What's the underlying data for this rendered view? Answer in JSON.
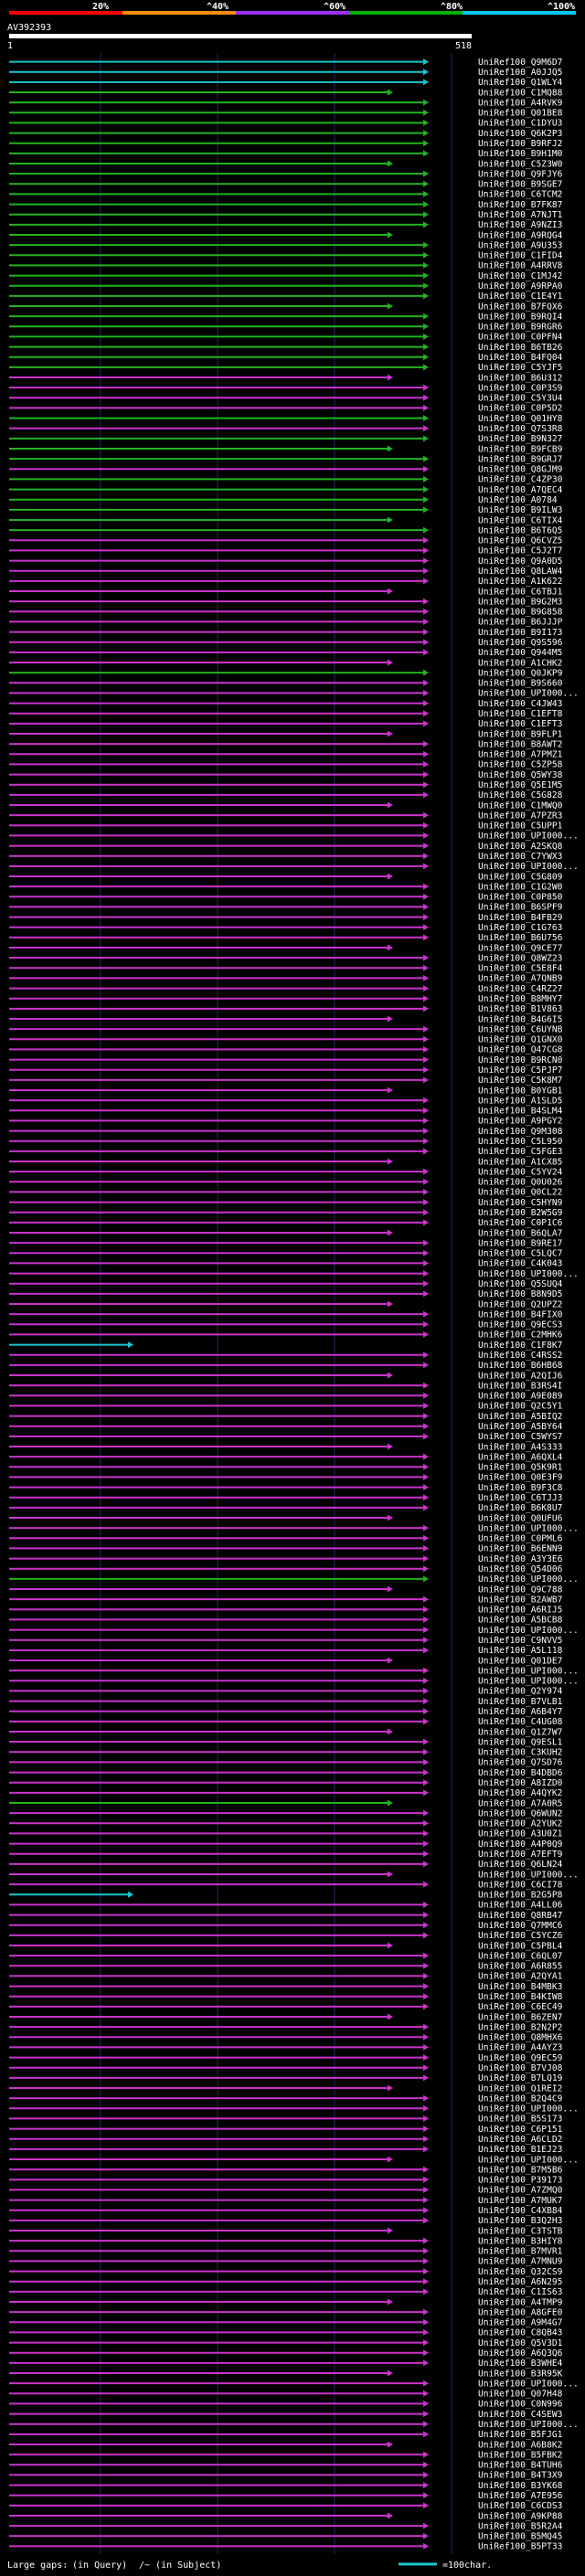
{
  "query_id": "AV392393",
  "query_start": "1",
  "query_end": "518",
  "scale_labels": [
    "20%",
    "^40%",
    "^60%",
    "^80%",
    "^100%"
  ],
  "scale_colors": [
    "#ff0000",
    "#ff8c00",
    "#9b30ff",
    "#00b000",
    "#00c8ff"
  ],
  "footer": {
    "gaps_text": "Large gaps:",
    "in_query": "(in Query)",
    "in_subject": "/~ (in Subject)",
    "legend_text": "=100char."
  },
  "colors": {
    "cyan": "#19c6cc",
    "green": "#22b322",
    "magenta": "#cc33cc",
    "frame": "#ffffff"
  },
  "chart_data": {
    "type": "alignment-overview",
    "title": "AV392393",
    "xlim": [
      1,
      518
    ],
    "hits": [
      {
        "id": "UniRef100_Q9M6D7",
        "c": "cyan"
      },
      {
        "id": "UniRef100_A0JJQ5",
        "c": "cyan"
      },
      {
        "id": "UniRef100_Q1WLY4",
        "c": "cyan"
      },
      {
        "id": "UniRef100_C1MQ88",
        "c": "green"
      },
      {
        "id": "UniRef100_A4RVK9",
        "c": "green"
      },
      {
        "id": "UniRef100_Q01BE8",
        "c": "green"
      },
      {
        "id": "UniRef100_C1DYU3",
        "c": "green"
      },
      {
        "id": "UniRef100_Q6K2P3",
        "c": "green"
      },
      {
        "id": "UniRef100_B9RFJ2",
        "c": "green"
      },
      {
        "id": "UniRef100_B9H1M0",
        "c": "green"
      },
      {
        "id": "UniRef100_C5Z3W0",
        "c": "green"
      },
      {
        "id": "UniRef100_Q9FJY6",
        "c": "green"
      },
      {
        "id": "UniRef100_B9SGE7",
        "c": "green"
      },
      {
        "id": "UniRef100_C6TCM2",
        "c": "green"
      },
      {
        "id": "UniRef100_B7FK87",
        "c": "green"
      },
      {
        "id": "UniRef100_A7NJT1",
        "c": "green"
      },
      {
        "id": "UniRef100_A9NZI3",
        "c": "green"
      },
      {
        "id": "UniRef100_A9RQG4",
        "c": "green"
      },
      {
        "id": "UniRef100_A9U353",
        "c": "green"
      },
      {
        "id": "UniRef100_C1FID4",
        "c": "green"
      },
      {
        "id": "UniRef100_A4RRV8",
        "c": "green"
      },
      {
        "id": "UniRef100_C1MJ42",
        "c": "green"
      },
      {
        "id": "UniRef100_A9RPA0",
        "c": "green"
      },
      {
        "id": "UniRef100_C1E4Y1",
        "c": "green"
      },
      {
        "id": "UniRef100_B7FQX6",
        "c": "green"
      },
      {
        "id": "UniRef100_B9RQI4",
        "c": "green"
      },
      {
        "id": "UniRef100_B9RGR6",
        "c": "green"
      },
      {
        "id": "UniRef100_C0PFN4",
        "c": "green"
      },
      {
        "id": "UniRef100_B6TB26",
        "c": "green"
      },
      {
        "id": "UniRef100_B4FQ04",
        "c": "green"
      },
      {
        "id": "UniRef100_C5YJF5",
        "c": "green"
      },
      {
        "id": "UniRef100_B6U312",
        "c": "magenta"
      },
      {
        "id": "UniRef100_C0P3S9",
        "c": "magenta"
      },
      {
        "id": "UniRef100_C5Y3U4",
        "c": "magenta"
      },
      {
        "id": "UniRef100_C0P5D2",
        "c": "magenta"
      },
      {
        "id": "UniRef100_Q01HY8",
        "c": "green"
      },
      {
        "id": "UniRef100_Q7S3R8",
        "c": "magenta"
      },
      {
        "id": "UniRef100_B9N327",
        "c": "green"
      },
      {
        "id": "UniRef100_B9FCB9",
        "c": "green"
      },
      {
        "id": "UniRef100_B9GRJ7",
        "c": "green"
      },
      {
        "id": "UniRef100_Q8GJM9",
        "c": "magenta"
      },
      {
        "id": "UniRef100_C4ZP30",
        "c": "green"
      },
      {
        "id": "UniRef100_A7QEC4",
        "c": "green"
      },
      {
        "id": "UniRef100_A0784",
        "c": "green"
      },
      {
        "id": "UniRef100_B9ILW3",
        "c": "green"
      },
      {
        "id": "UniRef100_C6TIX4",
        "c": "green"
      },
      {
        "id": "UniRef100_B6T6Q5",
        "c": "green"
      },
      {
        "id": "UniRef100_Q6CVZ5",
        "c": "magenta"
      },
      {
        "id": "UniRef100_C5J2T7",
        "c": "magenta"
      },
      {
        "id": "UniRef100_Q9A0D5",
        "c": "magenta"
      },
      {
        "id": "UniRef100_Q8LAW4",
        "c": "magenta"
      },
      {
        "id": "UniRef100_A1K622",
        "c": "magenta"
      },
      {
        "id": "UniRef100_C6TBJ1",
        "c": "magenta"
      },
      {
        "id": "UniRef100_B9G2M3",
        "c": "magenta"
      },
      {
        "id": "UniRef100_B9G858",
        "c": "magenta"
      },
      {
        "id": "UniRef100_B6JJJP",
        "c": "magenta"
      },
      {
        "id": "UniRef100_B9I173",
        "c": "magenta"
      },
      {
        "id": "UniRef100_Q9S596",
        "c": "magenta"
      },
      {
        "id": "UniRef100_Q944M5",
        "c": "magenta"
      },
      {
        "id": "UniRef100_A1CHK2",
        "c": "magenta"
      },
      {
        "id": "UniRef100_Q0JKP9",
        "c": "green"
      },
      {
        "id": "UniRef100_B9S660",
        "c": "magenta"
      },
      {
        "id": "UniRef100_UPI000...",
        "c": "magenta"
      },
      {
        "id": "UniRef100_C4JW43",
        "c": "magenta"
      },
      {
        "id": "UniRef100_C1EFT8",
        "c": "magenta"
      },
      {
        "id": "UniRef100_C1EFT3",
        "c": "magenta"
      },
      {
        "id": "UniRef100_B9FLP1",
        "c": "magenta"
      },
      {
        "id": "UniRef100_B8AWT2",
        "c": "magenta"
      },
      {
        "id": "UniRef100_A7PMZ1",
        "c": "magenta"
      },
      {
        "id": "UniRef100_C5ZP58",
        "c": "magenta"
      },
      {
        "id": "UniRef100_Q5WY38",
        "c": "magenta"
      },
      {
        "id": "UniRef100_Q5E1M5",
        "c": "magenta"
      },
      {
        "id": "UniRef100_C5G828",
        "c": "magenta"
      },
      {
        "id": "UniRef100_C1MWQ0",
        "c": "magenta"
      },
      {
        "id": "UniRef100_A7PZR3",
        "c": "magenta"
      },
      {
        "id": "UniRef100_C5UPP1",
        "c": "magenta"
      },
      {
        "id": "UniRef100_UPI000...",
        "c": "magenta"
      },
      {
        "id": "UniRef100_A2SKQ8",
        "c": "magenta"
      },
      {
        "id": "UniRef100_C7YWX3",
        "c": "magenta"
      },
      {
        "id": "UniRef100_UPI000...",
        "c": "magenta"
      },
      {
        "id": "UniRef100_C5G809",
        "c": "magenta"
      },
      {
        "id": "UniRef100_C1G2W0",
        "c": "magenta"
      },
      {
        "id": "UniRef100_C0P850",
        "c": "magenta"
      },
      {
        "id": "UniRef100_B6SPF9",
        "c": "magenta"
      },
      {
        "id": "UniRef100_B4FB29",
        "c": "magenta"
      },
      {
        "id": "UniRef100_C1G763",
        "c": "magenta"
      },
      {
        "id": "UniRef100_B6U756",
        "c": "magenta"
      },
      {
        "id": "UniRef100_Q9CE77",
        "c": "magenta"
      },
      {
        "id": "UniRef100_Q8WZ23",
        "c": "magenta"
      },
      {
        "id": "UniRef100_C5E8F4",
        "c": "magenta"
      },
      {
        "id": "UniRef100_A7QNB9",
        "c": "magenta"
      },
      {
        "id": "UniRef100_C4RZ27",
        "c": "magenta"
      },
      {
        "id": "UniRef100_B8MHY7",
        "c": "magenta"
      },
      {
        "id": "UniRef100_B1V863",
        "c": "magenta"
      },
      {
        "id": "UniRef100_B4G6I5",
        "c": "magenta"
      },
      {
        "id": "UniRef100_C6UYNB",
        "c": "magenta"
      },
      {
        "id": "UniRef100_Q1GNX0",
        "c": "magenta"
      },
      {
        "id": "UniRef100_Q47CG8",
        "c": "magenta"
      },
      {
        "id": "UniRef100_B9RCN0",
        "c": "magenta"
      },
      {
        "id": "UniRef100_C5PJP7",
        "c": "magenta"
      },
      {
        "id": "UniRef100_C5K8M7",
        "c": "magenta"
      },
      {
        "id": "UniRef100_B0YGB1",
        "c": "magenta"
      },
      {
        "id": "UniRef100_A1SLD5",
        "c": "magenta"
      },
      {
        "id": "UniRef100_B4SLM4",
        "c": "magenta"
      },
      {
        "id": "UniRef100_A9PGY2",
        "c": "magenta"
      },
      {
        "id": "UniRef100_Q9M308",
        "c": "magenta"
      },
      {
        "id": "UniRef100_C5L950",
        "c": "magenta"
      },
      {
        "id": "UniRef100_C5FGE3",
        "c": "magenta"
      },
      {
        "id": "UniRef100_A1CX85",
        "c": "magenta"
      },
      {
        "id": "UniRef100_C5YV24",
        "c": "magenta"
      },
      {
        "id": "UniRef100_Q0U026",
        "c": "magenta"
      },
      {
        "id": "UniRef100_Q0CL22",
        "c": "magenta"
      },
      {
        "id": "UniRef100_C5HYN9",
        "c": "magenta"
      },
      {
        "id": "UniRef100_B2W5G9",
        "c": "magenta"
      },
      {
        "id": "UniRef100_C0P1C6",
        "c": "magenta"
      },
      {
        "id": "UniRef100_B6QLA7",
        "c": "magenta"
      },
      {
        "id": "UniRef100_B9RE17",
        "c": "magenta"
      },
      {
        "id": "UniRef100_C5LQC7",
        "c": "magenta"
      },
      {
        "id": "UniRef100_C4K043",
        "c": "magenta"
      },
      {
        "id": "UniRef100_UPI000...",
        "c": "magenta"
      },
      {
        "id": "UniRef100_Q5SUQ4",
        "c": "magenta"
      },
      {
        "id": "UniRef100_B8N9D5",
        "c": "magenta"
      },
      {
        "id": "UniRef100_Q2UPZ2",
        "c": "magenta"
      },
      {
        "id": "UniRef100_B4FIX0",
        "c": "magenta"
      },
      {
        "id": "UniRef100_Q9ECS3",
        "c": "magenta"
      },
      {
        "id": "UniRef100_C2MHK6",
        "c": "magenta"
      },
      {
        "id": "UniRef100_C1F8K7",
        "c": "cyan"
      },
      {
        "id": "UniRef100_C4RSS2",
        "c": "magenta"
      },
      {
        "id": "UniRef100_B6HB68",
        "c": "magenta"
      },
      {
        "id": "UniRef100_A2QIJ6",
        "c": "magenta"
      },
      {
        "id": "UniRef100_B3RS4I",
        "c": "magenta"
      },
      {
        "id": "UniRef100_A9E089",
        "c": "magenta"
      },
      {
        "id": "UniRef100_Q2C5Y1",
        "c": "magenta"
      },
      {
        "id": "UniRef100_A5BIQ2",
        "c": "magenta"
      },
      {
        "id": "UniRef100_A5BY64",
        "c": "magenta"
      },
      {
        "id": "UniRef100_C5WYS7",
        "c": "magenta"
      },
      {
        "id": "UniRef100_A4S333",
        "c": "magenta"
      },
      {
        "id": "UniRef100_A6QXL4",
        "c": "magenta"
      },
      {
        "id": "UniRef100_Q5K9R1",
        "c": "magenta"
      },
      {
        "id": "UniRef100_Q0E3F9",
        "c": "magenta"
      },
      {
        "id": "UniRef100_B9F3C8",
        "c": "magenta"
      },
      {
        "id": "UniRef100_C6TJJ3",
        "c": "magenta"
      },
      {
        "id": "UniRef100_B6K8U7",
        "c": "magenta"
      },
      {
        "id": "UniRef100_Q0UFU6",
        "c": "magenta"
      },
      {
        "id": "UniRef100_UPI000...",
        "c": "magenta"
      },
      {
        "id": "UniRef100_C0PML6",
        "c": "magenta"
      },
      {
        "id": "UniRef100_B6ENN9",
        "c": "magenta"
      },
      {
        "id": "UniRef100_A3Y3E6",
        "c": "magenta"
      },
      {
        "id": "UniRef100_Q54D06",
        "c": "magenta"
      },
      {
        "id": "UniRef100_UPI000...",
        "c": "green"
      },
      {
        "id": "UniRef100_Q9C788",
        "c": "magenta"
      },
      {
        "id": "UniRef100_B2AWB7",
        "c": "magenta"
      },
      {
        "id": "UniRef100_A6RIJ5",
        "c": "magenta"
      },
      {
        "id": "UniRef100_A5BCB8",
        "c": "magenta"
      },
      {
        "id": "UniRef100_UPI000...",
        "c": "magenta"
      },
      {
        "id": "UniRef100_C9NVV5",
        "c": "magenta"
      },
      {
        "id": "UniRef100_A5L118",
        "c": "magenta"
      },
      {
        "id": "UniRef100_Q01DE7",
        "c": "magenta"
      },
      {
        "id": "UniRef100_UPI000...",
        "c": "magenta"
      },
      {
        "id": "UniRef100_UPI000...",
        "c": "magenta"
      },
      {
        "id": "UniRef100_Q2Y974",
        "c": "magenta"
      },
      {
        "id": "UniRef100_B7VLB1",
        "c": "magenta"
      },
      {
        "id": "UniRef100_A6B4Y7",
        "c": "magenta"
      },
      {
        "id": "UniRef100_C4UG08",
        "c": "magenta"
      },
      {
        "id": "UniRef100_Q1Z7W7",
        "c": "magenta"
      },
      {
        "id": "UniRef100_Q9ESL1",
        "c": "magenta"
      },
      {
        "id": "UniRef100_C3KUH2",
        "c": "magenta"
      },
      {
        "id": "UniRef100_Q7SD76",
        "c": "magenta"
      },
      {
        "id": "UniRef100_B4DBD6",
        "c": "magenta"
      },
      {
        "id": "UniRef100_A8IZD0",
        "c": "magenta"
      },
      {
        "id": "UniRef100_A4QYK2",
        "c": "magenta"
      },
      {
        "id": "UniRef100_A7A0R5",
        "c": "green"
      },
      {
        "id": "UniRef100_Q6WUN2",
        "c": "magenta"
      },
      {
        "id": "UniRef100_A2YUK2",
        "c": "magenta"
      },
      {
        "id": "UniRef100_A3U0Z1",
        "c": "magenta"
      },
      {
        "id": "UniRef100_A4P0Q9",
        "c": "magenta"
      },
      {
        "id": "UniRef100_A7EFT9",
        "c": "magenta"
      },
      {
        "id": "UniRef100_Q6LN24",
        "c": "magenta"
      },
      {
        "id": "UniRef100_UPI000...",
        "c": "magenta"
      },
      {
        "id": "UniRef100_C6CI78",
        "c": "magenta"
      },
      {
        "id": "UniRef100_B2G5P8",
        "c": "cyan"
      },
      {
        "id": "UniRef100_A4LL06",
        "c": "magenta"
      },
      {
        "id": "UniRef100_Q8RB47",
        "c": "magenta"
      },
      {
        "id": "UniRef100_Q7MMC6",
        "c": "magenta"
      },
      {
        "id": "UniRef100_C5YCZ6",
        "c": "magenta"
      },
      {
        "id": "UniRef100_C5PBL4",
        "c": "magenta"
      },
      {
        "id": "UniRef100_C6QL07",
        "c": "magenta"
      },
      {
        "id": "UniRef100_A6R855",
        "c": "magenta"
      },
      {
        "id": "UniRef100_A2QYA1",
        "c": "magenta"
      },
      {
        "id": "UniRef100_B4MBK3",
        "c": "magenta"
      },
      {
        "id": "UniRef100_B4KIW8",
        "c": "magenta"
      },
      {
        "id": "UniRef100_C6EC49",
        "c": "magenta"
      },
      {
        "id": "UniRef100_B6ZEN7",
        "c": "magenta"
      },
      {
        "id": "UniRef100_B2N2P2",
        "c": "magenta"
      },
      {
        "id": "UniRef100_Q8MHX6",
        "c": "magenta"
      },
      {
        "id": "UniRef100_A4AYZ3",
        "c": "magenta"
      },
      {
        "id": "UniRef100_Q9EC59",
        "c": "magenta"
      },
      {
        "id": "UniRef100_B7VJ08",
        "c": "magenta"
      },
      {
        "id": "UniRef100_B7LQ19",
        "c": "magenta"
      },
      {
        "id": "UniRef100_Q1REI2",
        "c": "magenta"
      },
      {
        "id": "UniRef100_B2Q4C9",
        "c": "magenta"
      },
      {
        "id": "UniRef100_UPI000...",
        "c": "magenta"
      },
      {
        "id": "UniRef100_B5S173",
        "c": "magenta"
      },
      {
        "id": "UniRef100_C6P151",
        "c": "magenta"
      },
      {
        "id": "UniRef100_A6CLD2",
        "c": "magenta"
      },
      {
        "id": "UniRef100_B1EJ23",
        "c": "magenta"
      },
      {
        "id": "UniRef100_UPI000...",
        "c": "magenta"
      },
      {
        "id": "UniRef100_B7M5B6",
        "c": "magenta"
      },
      {
        "id": "UniRef100_P39173",
        "c": "magenta"
      },
      {
        "id": "UniRef100_A7ZMQ0",
        "c": "magenta"
      },
      {
        "id": "UniRef100_A7MUK7",
        "c": "magenta"
      },
      {
        "id": "UniRef100_C4XB84",
        "c": "magenta"
      },
      {
        "id": "UniRef100_B3Q2H3",
        "c": "magenta"
      },
      {
        "id": "UniRef100_C3TSTB",
        "c": "magenta"
      },
      {
        "id": "UniRef100_B3HIY8",
        "c": "magenta"
      },
      {
        "id": "UniRef100_B7MVR1",
        "c": "magenta"
      },
      {
        "id": "UniRef100_A7MNU9",
        "c": "magenta"
      },
      {
        "id": "UniRef100_Q32CS9",
        "c": "magenta"
      },
      {
        "id": "UniRef100_A6N295",
        "c": "magenta"
      },
      {
        "id": "UniRef100_C1IS63",
        "c": "magenta"
      },
      {
        "id": "UniRef100_A4TMP9",
        "c": "magenta"
      },
      {
        "id": "UniRef100_A8GFE0",
        "c": "magenta"
      },
      {
        "id": "UniRef100_A9M4G7",
        "c": "magenta"
      },
      {
        "id": "UniRef100_C8QB43",
        "c": "magenta"
      },
      {
        "id": "UniRef100_Q5V3D1",
        "c": "magenta"
      },
      {
        "id": "UniRef100_A6Q3Q6",
        "c": "magenta"
      },
      {
        "id": "UniRef100_B3WHE4",
        "c": "magenta"
      },
      {
        "id": "UniRef100_B3R95K",
        "c": "magenta"
      },
      {
        "id": "UniRef100_UPI000...",
        "c": "magenta"
      },
      {
        "id": "UniRef100_Q07H48",
        "c": "magenta"
      },
      {
        "id": "UniRef100_C0N996",
        "c": "magenta"
      },
      {
        "id": "UniRef100_C4SEW3",
        "c": "magenta"
      },
      {
        "id": "UniRef100_UPI000...",
        "c": "magenta"
      },
      {
        "id": "UniRef100_B5FJG1",
        "c": "magenta"
      },
      {
        "id": "UniRef100_A6B8K2",
        "c": "magenta"
      },
      {
        "id": "UniRef100_B5FBK2",
        "c": "magenta"
      },
      {
        "id": "UniRef100_B4TUH6",
        "c": "magenta"
      },
      {
        "id": "UniRef100_B4T3X9",
        "c": "magenta"
      },
      {
        "id": "UniRef100_B3YK68",
        "c": "magenta"
      },
      {
        "id": "UniRef100_A7E956",
        "c": "magenta"
      },
      {
        "id": "UniRef100_C6CDS3",
        "c": "magenta"
      },
      {
        "id": "UniRef100_A9KP88",
        "c": "magenta"
      },
      {
        "id": "UniRef100_B5R2A4",
        "c": "magenta"
      },
      {
        "id": "UniRef100_B5MQ45",
        "c": "magenta"
      },
      {
        "id": "UniRef100_B5PT33",
        "c": "magenta"
      }
    ]
  }
}
